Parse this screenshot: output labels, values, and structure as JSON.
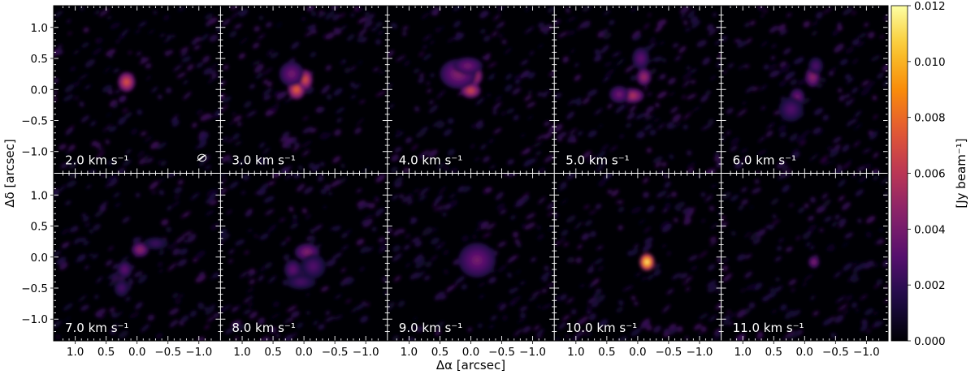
{
  "chart_data": {
    "type": "heatmap",
    "layout": {
      "rows": 2,
      "cols": 5
    },
    "xlabel": "Δα [arcsec]",
    "ylabel": "Δδ [arcsec]",
    "xlim": [
      1.35,
      -1.35
    ],
    "ylim": [
      -1.35,
      1.35
    ],
    "xticks": [
      1.0,
      0.5,
      0.0,
      -0.5,
      -1.0
    ],
    "xtick_labels": [
      "1.0",
      "0.5",
      "0.0",
      "−0.5",
      "−1.0"
    ],
    "yticks": [
      1.0,
      0.5,
      0.0,
      -0.5,
      -1.0
    ],
    "ytick_labels": [
      "1.0",
      "0.5",
      "0.0",
      "−0.5",
      "−1.0"
    ],
    "velocity_unit": "km s⁻¹",
    "colormap": "inferno",
    "colorbar": {
      "label": "[Jy beam⁻¹]",
      "range": [
        0.0,
        0.012
      ],
      "ticks": [
        0.0,
        0.002,
        0.004,
        0.006,
        0.008,
        0.01,
        0.012
      ],
      "tick_labels": [
        "0.000",
        "0.002",
        "0.004",
        "0.006",
        "0.008",
        "0.010",
        "0.012"
      ]
    },
    "beam": {
      "panel_index": 0,
      "x": -1.05,
      "y": -1.1
    },
    "panels": [
      {
        "label": "2.0 km s⁻¹",
        "velocity": 2.0,
        "features": [
          {
            "x": 0.17,
            "y": 0.12,
            "peak": 0.0075,
            "sx": 0.07,
            "sy": 0.08
          }
        ]
      },
      {
        "label": "3.0 km s⁻¹",
        "velocity": 3.0,
        "features": [
          {
            "x": 0.08,
            "y": 0.18,
            "peak": 0.0085,
            "sx": 0.1,
            "sy": 0.07
          },
          {
            "x": 0.12,
            "y": 0.0,
            "peak": 0.008,
            "sx": 0.07,
            "sy": 0.08
          },
          {
            "x": -0.02,
            "y": 0.16,
            "peak": 0.0075,
            "sx": 0.06,
            "sy": 0.08
          },
          {
            "x": 0.2,
            "y": 0.25,
            "peak": 0.004,
            "sx": 0.1,
            "sy": 0.1
          }
        ]
      },
      {
        "label": "4.0 km s⁻¹",
        "velocity": 4.0,
        "features": [
          {
            "x": -0.05,
            "y": 0.22,
            "peak": 0.007,
            "sx": 0.07,
            "sy": 0.08
          },
          {
            "x": 0.0,
            "y": -0.02,
            "peak": 0.007,
            "sx": 0.08,
            "sy": 0.06
          },
          {
            "x": 0.2,
            "y": 0.25,
            "peak": 0.0045,
            "sx": 0.15,
            "sy": 0.12
          },
          {
            "x": 0.05,
            "y": 0.38,
            "peak": 0.004,
            "sx": 0.12,
            "sy": 0.07
          }
        ]
      },
      {
        "label": "5.0 km s⁻¹",
        "velocity": 5.0,
        "features": [
          {
            "x": 0.08,
            "y": -0.1,
            "peak": 0.006,
            "sx": 0.09,
            "sy": 0.06
          },
          {
            "x": -0.1,
            "y": 0.2,
            "peak": 0.0055,
            "sx": 0.06,
            "sy": 0.07
          },
          {
            "x": 0.3,
            "y": -0.08,
            "peak": 0.004,
            "sx": 0.08,
            "sy": 0.07
          },
          {
            "x": -0.05,
            "y": 0.5,
            "peak": 0.0035,
            "sx": 0.07,
            "sy": 0.09
          }
        ]
      },
      {
        "label": "6.0 km s⁻¹",
        "velocity": 6.0,
        "features": [
          {
            "x": -0.13,
            "y": 0.2,
            "peak": 0.005,
            "sx": 0.06,
            "sy": 0.08
          },
          {
            "x": 0.12,
            "y": -0.12,
            "peak": 0.004,
            "sx": 0.06,
            "sy": 0.07
          },
          {
            "x": 0.22,
            "y": -0.32,
            "peak": 0.003,
            "sx": 0.1,
            "sy": 0.1
          },
          {
            "x": -0.18,
            "y": 0.38,
            "peak": 0.003,
            "sx": 0.06,
            "sy": 0.07
          }
        ]
      },
      {
        "label": "7.0 km s⁻¹",
        "velocity": 7.0,
        "features": [
          {
            "x": -0.05,
            "y": 0.12,
            "peak": 0.005,
            "sx": 0.07,
            "sy": 0.06
          },
          {
            "x": 0.2,
            "y": -0.2,
            "peak": 0.0035,
            "sx": 0.06,
            "sy": 0.07
          },
          {
            "x": 0.25,
            "y": -0.5,
            "peak": 0.0028,
            "sx": 0.06,
            "sy": 0.07
          },
          {
            "x": -0.3,
            "y": 0.22,
            "peak": 0.0025,
            "sx": 0.1,
            "sy": 0.05
          }
        ]
      },
      {
        "label": "8.0 km s⁻¹",
        "velocity": 8.0,
        "features": [
          {
            "x": -0.05,
            "y": 0.08,
            "peak": 0.0045,
            "sx": 0.1,
            "sy": 0.07
          },
          {
            "x": 0.18,
            "y": -0.2,
            "peak": 0.0035,
            "sx": 0.07,
            "sy": 0.08
          },
          {
            "x": -0.15,
            "y": -0.15,
            "peak": 0.003,
            "sx": 0.1,
            "sy": 0.1
          },
          {
            "x": 0.05,
            "y": -0.4,
            "peak": 0.0028,
            "sx": 0.12,
            "sy": 0.06
          }
        ]
      },
      {
        "label": "9.0 km s⁻¹",
        "velocity": 9.0,
        "features": [
          {
            "x": -0.15,
            "y": 0.0,
            "peak": 0.0055,
            "sx": 0.07,
            "sy": 0.06
          },
          {
            "x": -0.22,
            "y": -0.15,
            "peak": 0.005,
            "sx": 0.07,
            "sy": 0.07
          },
          {
            "x": -0.05,
            "y": -0.15,
            "peak": 0.0045,
            "sx": 0.08,
            "sy": 0.08
          },
          {
            "x": -0.1,
            "y": -0.05,
            "peak": 0.004,
            "sx": 0.15,
            "sy": 0.14
          }
        ]
      },
      {
        "label": "10.0 km s⁻¹",
        "velocity": 10.0,
        "features": [
          {
            "x": -0.15,
            "y": -0.08,
            "peak": 0.012,
            "sx": 0.06,
            "sy": 0.07
          }
        ]
      },
      {
        "label": "11.0 km s⁻¹",
        "velocity": 11.0,
        "features": [
          {
            "x": -0.15,
            "y": -0.08,
            "peak": 0.0045,
            "sx": 0.045,
            "sy": 0.05
          }
        ]
      }
    ]
  }
}
